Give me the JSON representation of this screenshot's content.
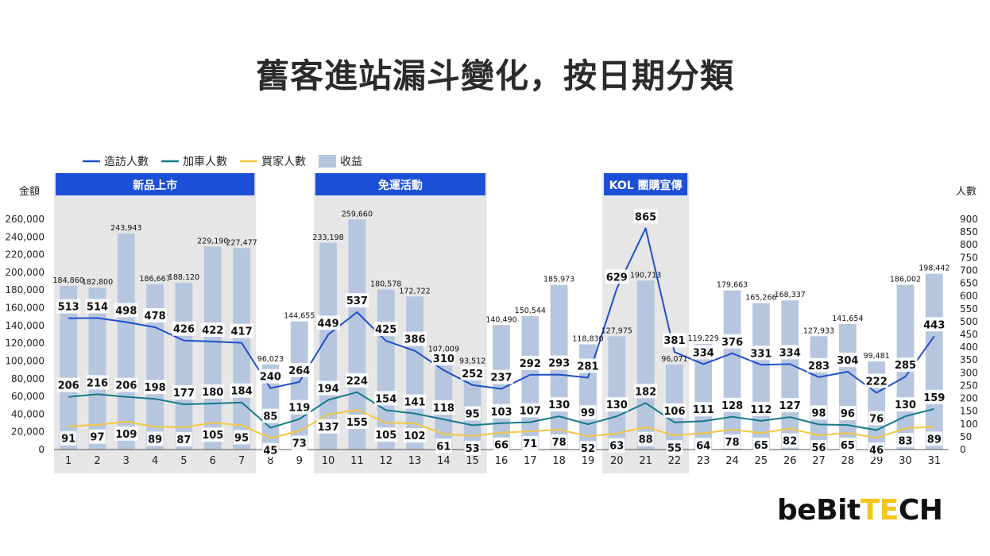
{
  "page": {
    "title": "舊客進站漏斗變化，按日期分類"
  },
  "colors": {
    "visits": "#1f4fc9",
    "cart": "#157a8c",
    "buyers": "#f2c744",
    "revenue": "#b7c6df",
    "band_fill": "#e6e6e6",
    "band_header": "#1c4fd8"
  },
  "bands": [
    {
      "label": "新品上市",
      "from": 1,
      "to": 7
    },
    {
      "label": "免運活動",
      "from": 10,
      "to": 15
    },
    {
      "label": "KOL 團購宣傳",
      "from": 20,
      "to": 22
    }
  ],
  "chart_data": {
    "type": "bar",
    "categories": [
      "1",
      "2",
      "3",
      "4",
      "5",
      "6",
      "7",
      "8",
      "9",
      "10",
      "11",
      "12",
      "13",
      "14",
      "15",
      "16",
      "17",
      "18",
      "19",
      "20",
      "21",
      "22",
      "23",
      "24",
      "25",
      "26",
      "27",
      "28",
      "29",
      "30",
      "31"
    ],
    "axes": {
      "left": {
        "title": "金額",
        "min": 0,
        "max": 260000,
        "step": 20000,
        "tick_labels": [
          "0",
          "20,000",
          "40,000",
          "60,000",
          "80,000",
          "100,000",
          "120,000",
          "140,000",
          "160,000",
          "180,000",
          "200,000",
          "220,000",
          "240,000",
          "260,000"
        ]
      },
      "right": {
        "title": "人數",
        "min": 0,
        "max": 900,
        "step": 50,
        "tick_labels": [
          "0",
          "50",
          "100",
          "150",
          "200",
          "250",
          "300",
          "350",
          "400",
          "450",
          "500",
          "550",
          "600",
          "650",
          "700",
          "750",
          "800",
          "850",
          "900"
        ]
      }
    },
    "legend": {
      "position": "top-left"
    },
    "series": [
      {
        "name": "收益",
        "kind": "bar",
        "axis": "left",
        "values": [
          184860,
          182800,
          243943,
          186667,
          188120,
          229190,
          227477,
          96023,
          144655,
          233198,
          259660,
          180578,
          172722,
          107009,
          93512,
          140490,
          150544,
          185973,
          118830,
          127975,
          190713,
          96071,
          119229,
          179663,
          165266,
          168337,
          127933,
          141654,
          99481,
          186002,
          198442
        ],
        "labels": [
          "184,860",
          "182,800",
          "243,943",
          "186,667",
          "188,120",
          "229,190",
          "227,477",
          "96,023",
          "144,655",
          "233,198",
          "259,660",
          "180,578",
          "172,722",
          "107,009",
          "93,512",
          "140,490",
          "150,544",
          "185,973",
          "118,830",
          "127,975",
          "190,713",
          "96,071",
          "119,229",
          "179,663",
          "165,266",
          "168,337",
          "127,933",
          "141,654",
          "99,481",
          "186,002",
          "198,442"
        ]
      },
      {
        "name": "造訪人數",
        "kind": "line",
        "axis": "right",
        "values": [
          513,
          514,
          498,
          478,
          426,
          422,
          417,
          240,
          264,
          449,
          537,
          425,
          386,
          310,
          252,
          237,
          292,
          293,
          281,
          629,
          865,
          381,
          334,
          376,
          331,
          334,
          283,
          304,
          222,
          285,
          443
        ]
      },
      {
        "name": "加車人數",
        "kind": "line",
        "axis": "right",
        "values": [
          206,
          216,
          206,
          198,
          177,
          180,
          184,
          85,
          119,
          194,
          224,
          154,
          141,
          118,
          95,
          103,
          107,
          130,
          99,
          130,
          182,
          106,
          111,
          128,
          112,
          127,
          98,
          96,
          76,
          130,
          159
        ]
      },
      {
        "name": "買家人數",
        "kind": "line",
        "axis": "right",
        "values": [
          91,
          97,
          109,
          89,
          87,
          105,
          95,
          45,
          73,
          137,
          155,
          105,
          102,
          61,
          53,
          66,
          71,
          78,
          52,
          63,
          88,
          55,
          64,
          78,
          65,
          82,
          56,
          65,
          46,
          83,
          89
        ]
      }
    ]
  },
  "logo": {
    "text_a": "beBit",
    "text_b": "TE",
    "text_c": "CH"
  }
}
